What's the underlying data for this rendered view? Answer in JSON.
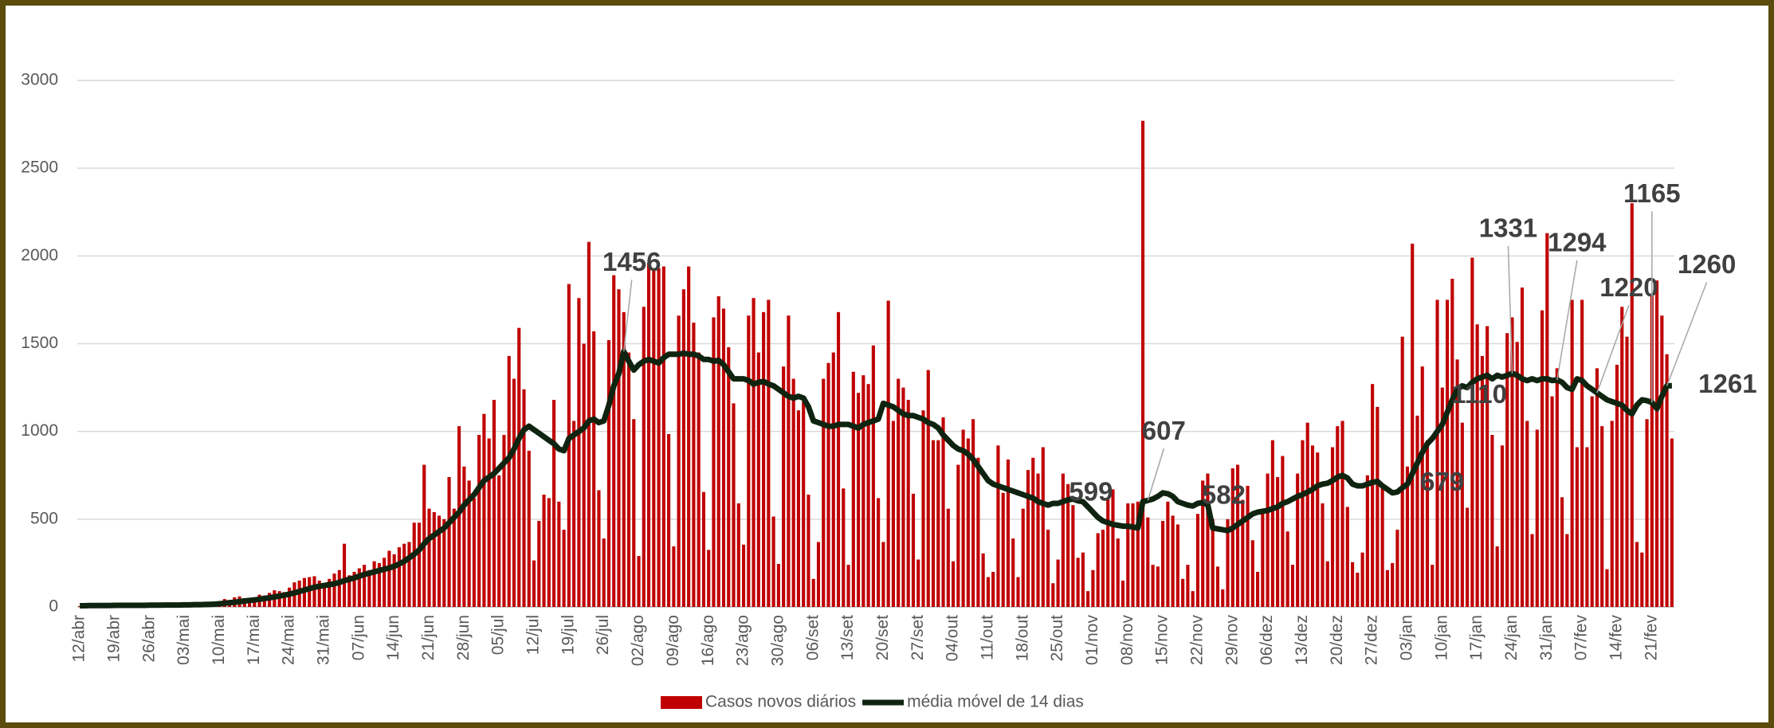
{
  "chart_data": {
    "type": "bar",
    "categories": [
      "12/abr",
      null,
      null,
      null,
      null,
      null,
      null,
      "19/abr",
      null,
      null,
      null,
      null,
      null,
      null,
      "26/abr",
      null,
      null,
      null,
      null,
      null,
      null,
      "03/mai",
      null,
      null,
      null,
      null,
      null,
      null,
      "10/mai",
      null,
      null,
      null,
      null,
      null,
      null,
      "17/mai",
      null,
      null,
      null,
      null,
      null,
      null,
      "24/mai",
      null,
      null,
      null,
      null,
      null,
      null,
      "31/mai",
      null,
      null,
      null,
      null,
      null,
      null,
      "07/jun",
      null,
      null,
      null,
      null,
      null,
      null,
      "14/jun",
      null,
      null,
      null,
      null,
      null,
      null,
      "21/jun",
      null,
      null,
      null,
      null,
      null,
      null,
      "28/jun",
      null,
      null,
      null,
      null,
      null,
      null,
      "05/jul",
      null,
      null,
      null,
      null,
      null,
      null,
      "12/jul",
      null,
      null,
      null,
      null,
      null,
      null,
      "19/jul",
      null,
      null,
      null,
      null,
      null,
      null,
      "26/jul",
      null,
      null,
      null,
      null,
      null,
      null,
      "02/ago",
      null,
      null,
      null,
      null,
      null,
      null,
      "09/ago",
      null,
      null,
      null,
      null,
      null,
      null,
      "16/ago",
      null,
      null,
      null,
      null,
      null,
      null,
      "23/ago",
      null,
      null,
      null,
      null,
      null,
      null,
      "30/ago",
      null,
      null,
      null,
      null,
      null,
      null,
      "06/set",
      null,
      null,
      null,
      null,
      null,
      null,
      "13/set",
      null,
      null,
      null,
      null,
      null,
      null,
      "20/set",
      null,
      null,
      null,
      null,
      null,
      null,
      "27/set",
      null,
      null,
      null,
      null,
      null,
      null,
      "04/out",
      null,
      null,
      null,
      null,
      null,
      null,
      "11/out",
      null,
      null,
      null,
      null,
      null,
      null,
      "18/out",
      null,
      null,
      null,
      null,
      null,
      null,
      "25/out",
      null,
      null,
      null,
      null,
      null,
      null,
      "01/nov",
      null,
      null,
      null,
      null,
      null,
      null,
      "08/nov",
      null,
      null,
      null,
      null,
      null,
      null,
      "15/nov",
      null,
      null,
      null,
      null,
      null,
      null,
      "22/nov",
      null,
      null,
      null,
      null,
      null,
      null,
      "29/nov",
      null,
      null,
      null,
      null,
      null,
      null,
      "06/dez",
      null,
      null,
      null,
      null,
      null,
      null,
      "13/dez",
      null,
      null,
      null,
      null,
      null,
      null,
      "20/dez",
      null,
      null,
      null,
      null,
      null,
      null,
      "27/dez",
      null,
      null,
      null,
      null,
      null,
      null,
      "03/jan",
      null,
      null,
      null,
      null,
      null,
      null,
      "10/jan",
      null,
      null,
      null,
      null,
      null,
      null,
      "17/jan",
      null,
      null,
      null,
      null,
      null,
      null,
      "24/jan",
      null,
      null,
      null,
      null,
      null,
      null,
      "31/jan",
      null,
      null,
      null,
      null,
      null,
      null,
      "07/fev",
      null,
      null,
      null,
      null,
      null,
      null,
      "14/fev",
      null,
      null,
      null,
      null,
      null,
      null,
      "21/fev",
      null,
      null,
      null,
      null
    ],
    "series": [
      {
        "name": "Casos novos diários",
        "type": "bar",
        "color": "#c00000",
        "values": [
          5,
          8,
          6,
          10,
          7,
          9,
          6,
          8,
          10,
          7,
          12,
          9,
          10,
          8,
          10,
          12,
          9,
          14,
          11,
          13,
          10,
          12,
          15,
          18,
          14,
          20,
          16,
          22,
          30,
          45,
          40,
          55,
          60,
          50,
          45,
          55,
          70,
          65,
          80,
          95,
          90,
          85,
          110,
          140,
          150,
          165,
          170,
          175,
          150,
          120,
          160,
          190,
          210,
          360,
          180,
          200,
          220,
          240,
          210,
          260,
          250,
          280,
          320,
          300,
          340,
          360,
          370,
          480,
          480,
          810,
          560,
          540,
          520,
          500,
          740,
          560,
          1030,
          800,
          720,
          620,
          980,
          1100,
          960,
          1180,
          750,
          980,
          1430,
          1300,
          1590,
          1240,
          890,
          265,
          490,
          640,
          620,
          1180,
          600,
          440,
          1840,
          1060,
          1760,
          1500,
          2080,
          1570,
          665,
          390,
          1520,
          1890,
          1810,
          1680,
          1450,
          1070,
          290,
          1710,
          1960,
          1920,
          1930,
          1940,
          985,
          345,
          1660,
          1810,
          1940,
          1620,
          1450,
          655,
          325,
          1650,
          1770,
          1700,
          1480,
          1160,
          590,
          355,
          1660,
          1760,
          1450,
          1680,
          1750,
          515,
          245,
          1370,
          1660,
          1300,
          1120,
          1170,
          640,
          160,
          370,
          1300,
          1390,
          1450,
          1680,
          675,
          240,
          1340,
          1220,
          1320,
          1270,
          1490,
          620,
          370,
          1745,
          1060,
          1300,
          1250,
          1180,
          645,
          270,
          1120,
          1350,
          950,
          950,
          1080,
          560,
          260,
          810,
          1010,
          960,
          1070,
          850,
          305,
          170,
          200,
          920,
          650,
          840,
          390,
          170,
          560,
          780,
          850,
          760,
          910,
          440,
          135,
          270,
          760,
          700,
          580,
          280,
          310,
          90,
          210,
          420,
          440,
          620,
          670,
          390,
          150,
          590,
          590,
          600,
          2770,
          510,
          240,
          230,
          490,
          600,
          520,
          470,
          160,
          240,
          90,
          530,
          720,
          760,
          500,
          230,
          100,
          500,
          790,
          810,
          610,
          690,
          380,
          200,
          560,
          760,
          950,
          740,
          860,
          430,
          240,
          760,
          950,
          1050,
          920,
          880,
          590,
          260,
          910,
          1030,
          1060,
          570,
          255,
          195,
          310,
          750,
          1270,
          1140,
          690,
          210,
          250,
          440,
          1540,
          800,
          2070,
          1090,
          1370,
          950,
          240,
          1750,
          1250,
          1750,
          1870,
          1410,
          1050,
          565,
          1990,
          1610,
          1430,
          1600,
          980,
          345,
          920,
          1560,
          1650,
          1510,
          1820,
          1060,
          415,
          1010,
          1690,
          2130,
          1200,
          1360,
          625,
          415,
          1750,
          910,
          1750,
          910,
          1200,
          1360,
          1030,
          215,
          1060,
          1380,
          1710,
          1540,
          2300,
          370,
          310,
          1070,
          1770,
          1860,
          1660,
          1440,
          960
        ]
      },
      {
        "name": "média móvel de 14 dias",
        "type": "line",
        "color": "#0f2410",
        "values": [
          7,
          7,
          8,
          8,
          8,
          8,
          8,
          9,
          9,
          9,
          9,
          9,
          9,
          9,
          10,
          10,
          10,
          11,
          11,
          11,
          11,
          12,
          12,
          13,
          13,
          14,
          15,
          16,
          18,
          21,
          24,
          27,
          30,
          34,
          37,
          40,
          44,
          48,
          52,
          57,
          62,
          67,
          73,
          80,
          88,
          96,
          104,
          112,
          118,
          122,
          127,
          132,
          140,
          150,
          158,
          165,
          175,
          185,
          192,
          200,
          208,
          215,
          222,
          232,
          245,
          260,
          280,
          300,
          325,
          360,
          390,
          410,
          430,
          450,
          480,
          510,
          540,
          580,
          610,
          640,
          680,
          720,
          740,
          760,
          790,
          820,
          850,
          900,
          960,
          1010,
          1030,
          1010,
          990,
          970,
          950,
          930,
          900,
          890,
          960,
          980,
          1000,
          1020,
          1060,
          1070,
          1050,
          1060,
          1150,
          1260,
          1330,
          1456,
          1400,
          1350,
          1380,
          1400,
          1410,
          1400,
          1390,
          1420,
          1440,
          1440,
          1440,
          1445,
          1440,
          1440,
          1430,
          1410,
          1410,
          1400,
          1405,
          1380,
          1340,
          1300,
          1300,
          1300,
          1290,
          1270,
          1280,
          1285,
          1270,
          1260,
          1240,
          1220,
          1200,
          1190,
          1200,
          1190,
          1140,
          1060,
          1050,
          1040,
          1030,
          1030,
          1040,
          1040,
          1040,
          1030,
          1020,
          1040,
          1050,
          1060,
          1070,
          1160,
          1150,
          1140,
          1120,
          1100,
          1090,
          1090,
          1080,
          1070,
          1050,
          1040,
          1020,
          980,
          950,
          920,
          900,
          890,
          870,
          840,
          800,
          760,
          720,
          700,
          690,
          680,
          670,
          660,
          650,
          640,
          630,
          620,
          600,
          590,
          580,
          590,
          590,
          600,
          610,
          615,
          605,
          599,
          570,
          540,
          510,
          490,
          480,
          470,
          465,
          460,
          460,
          455,
          450,
          600,
          607,
          615,
          630,
          650,
          645,
          630,
          600,
          590,
          580,
          575,
          590,
          595,
          582,
          450,
          445,
          440,
          435,
          450,
          470,
          490,
          510,
          530,
          540,
          545,
          550,
          560,
          570,
          590,
          600,
          615,
          630,
          640,
          655,
          670,
          690,
          700,
          705,
          720,
          740,
          750,
          735,
          700,
          690,
          690,
          700,
          710,
          715,
          690,
          670,
          650,
          655,
          679,
          700,
          760,
          820,
          880,
          930,
          960,
          1000,
          1040,
          1110,
          1180,
          1240,
          1260,
          1250,
          1280,
          1300,
          1310,
          1320,
          1300,
          1320,
          1310,
          1320,
          1331,
          1320,
          1300,
          1290,
          1300,
          1290,
          1300,
          1300,
          1290,
          1294,
          1280,
          1250,
          1240,
          1300,
          1290,
          1260,
          1240,
          1220,
          1200,
          1180,
          1170,
          1160,
          1150,
          1120,
          1100,
          1150,
          1180,
          1175,
          1165,
          1130,
          1200,
          1260,
          1261
        ],
        "value_labels": [
          null,
          null,
          null,
          null,
          null,
          null,
          null,
          null,
          null,
          null,
          null,
          null,
          null,
          null,
          null,
          null,
          null,
          null,
          null,
          null,
          null,
          null,
          null,
          null,
          null,
          null,
          null,
          null,
          null,
          null,
          null,
          null,
          null,
          null,
          null,
          null,
          null,
          null,
          null,
          null,
          null,
          null,
          null,
          null,
          null,
          null,
          null,
          null,
          null,
          null,
          null,
          null,
          null,
          null,
          null,
          null,
          null,
          null,
          null,
          null,
          null,
          null,
          null,
          null,
          null,
          null,
          null,
          null,
          null,
          null,
          null,
          null,
          null,
          null,
          null,
          null,
          null,
          null,
          null,
          null,
          null,
          null,
          null,
          null,
          null,
          null,
          null,
          null,
          null,
          null,
          null,
          null,
          null,
          null,
          null,
          null,
          null,
          null,
          null,
          null,
          null,
          null,
          null,
          null,
          null,
          null,
          null,
          null,
          null,
          "1456",
          null,
          null,
          null,
          null,
          null,
          null,
          null,
          null,
          null,
          null,
          null,
          null,
          null,
          null,
          null,
          null,
          null,
          null,
          null,
          null,
          null,
          null,
          null,
          null,
          null,
          null,
          null,
          null,
          null,
          null,
          null,
          null,
          null,
          null,
          null,
          null,
          null,
          null,
          null,
          null,
          null,
          null,
          null,
          null,
          null,
          null,
          null,
          null,
          null,
          null,
          null,
          null,
          null,
          null,
          null,
          null,
          null,
          null,
          null,
          null,
          null,
          null,
          null,
          null,
          null,
          null,
          null,
          null,
          null,
          null,
          null,
          null,
          null,
          null,
          null,
          null,
          null,
          null,
          null,
          null,
          null,
          null,
          null,
          null,
          null,
          null,
          null,
          null,
          null,
          null,
          null,
          "599",
          null,
          null,
          null,
          null,
          null,
          null,
          null,
          null,
          null,
          null,
          null,
          null,
          "607",
          null,
          null,
          null,
          null,
          null,
          null,
          null,
          null,
          null,
          null,
          null,
          "582",
          null,
          null,
          null,
          null,
          null,
          null,
          null,
          null,
          null,
          null,
          null,
          null,
          null,
          null,
          null,
          null,
          null,
          null,
          null,
          null,
          null,
          null,
          null,
          null,
          null,
          null,
          null,
          null,
          null,
          null,
          null,
          null,
          null,
          null,
          null,
          null,
          null,
          null,
          "679",
          null,
          null,
          null,
          null,
          null,
          null,
          null,
          null,
          "1110",
          null,
          null,
          null,
          null,
          null,
          null,
          null,
          null,
          null,
          null,
          null,
          null,
          "1331",
          null,
          null,
          null,
          null,
          null,
          null,
          null,
          null,
          "1294",
          null,
          null,
          null,
          null,
          null,
          null,
          null,
          "1220",
          null,
          null,
          null,
          null,
          null,
          null,
          null,
          null,
          null,
          null,
          "1165",
          null,
          null,
          "1260",
          "1261"
        ]
      }
    ],
    "ylim": [
      0,
      3000
    ],
    "yticks": [
      0,
      500,
      1000,
      1500,
      2000,
      2500,
      3000
    ],
    "grid": true,
    "legend": "bottom"
  }
}
